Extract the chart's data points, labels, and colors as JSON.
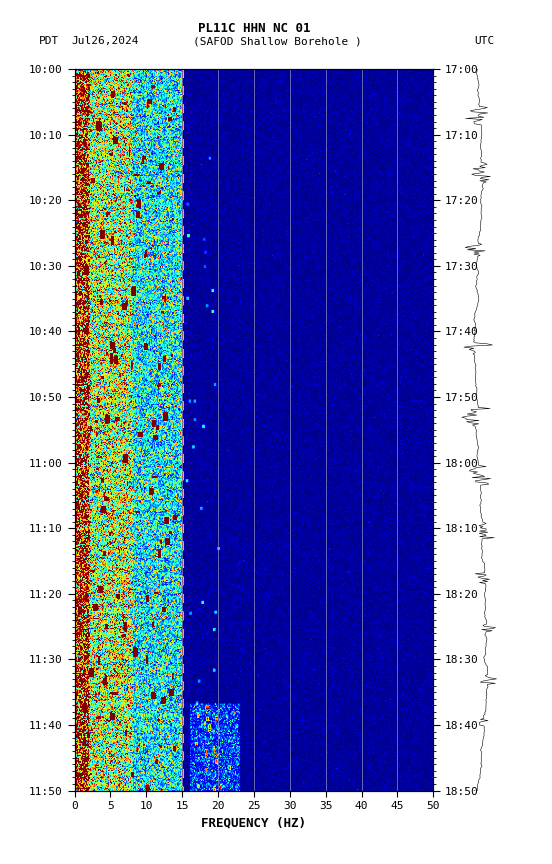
{
  "title_line1": "PL11C HHN NC 01",
  "title_line2_left": "PDT   Jul26,2024     (SAFOD Shallow Borehole )",
  "title_line2_right": "UTC",
  "xlabel": "FREQUENCY (HZ)",
  "freq_min": 0,
  "freq_max": 50,
  "pdt_ticks": [
    "10:00",
    "10:10",
    "10:20",
    "10:30",
    "10:40",
    "10:50",
    "11:00",
    "11:10",
    "11:20",
    "11:30",
    "11:40",
    "11:50"
  ],
  "utc_ticks": [
    "17:00",
    "17:10",
    "17:20",
    "17:30",
    "17:40",
    "17:50",
    "18:00",
    "18:10",
    "18:20",
    "18:30",
    "18:40",
    "18:50"
  ],
  "freq_ticks": [
    0,
    5,
    10,
    15,
    20,
    25,
    30,
    35,
    40,
    45,
    50
  ],
  "vertical_lines_freq": [
    15,
    20,
    25,
    30,
    35,
    40,
    45
  ],
  "fig_bg": "#ffffff",
  "colormap": "jet",
  "seed": 42,
  "n_time": 660,
  "n_freq": 500,
  "vmin": 0.0,
  "vmax": 0.18,
  "low_freq_hz": 15,
  "very_low_hz": 2,
  "hot_line_hz": 15
}
